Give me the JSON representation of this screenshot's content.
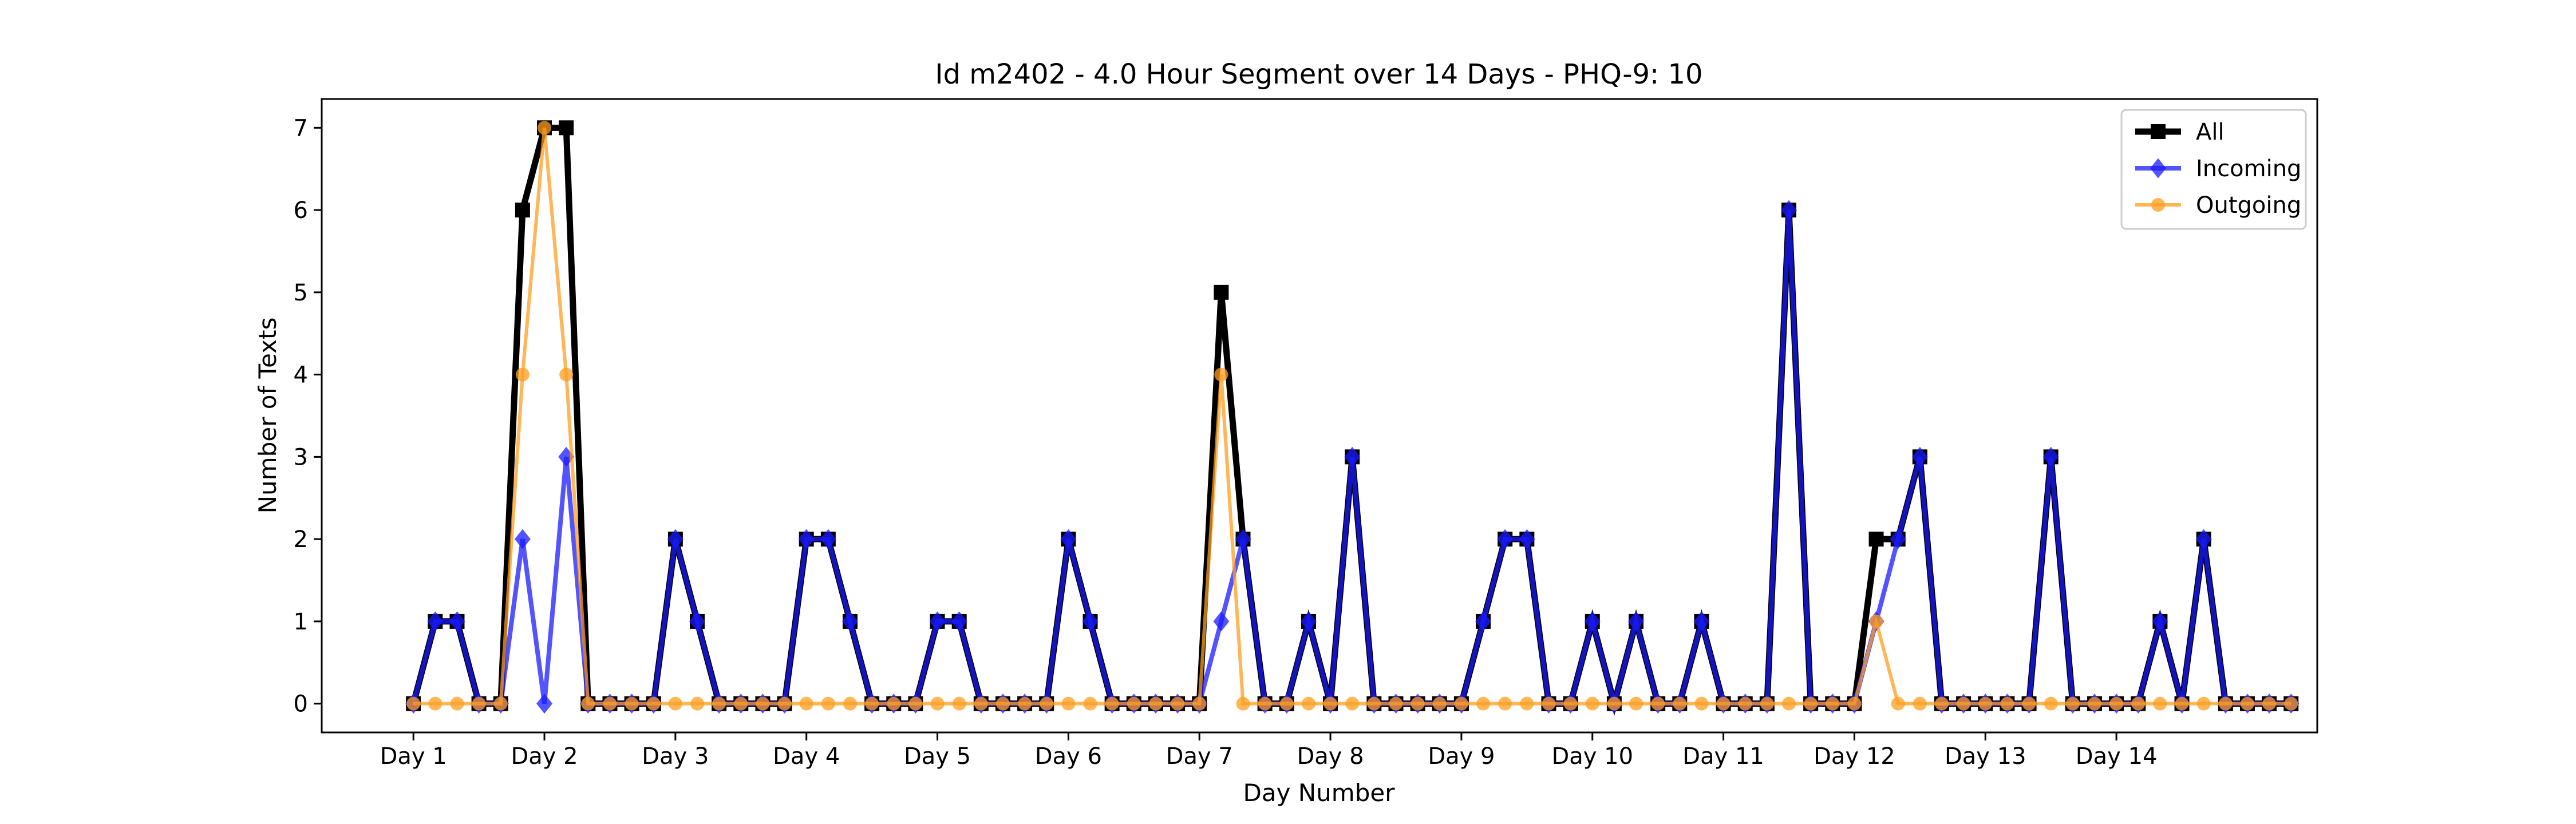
{
  "chart_data": {
    "type": "line",
    "title": "Id m2402 - 4.0 Hour Segment over 14 Days - PHQ-9: 10",
    "xlabel": "Day Number",
    "ylabel": "Number of Texts",
    "x_ticks": [
      {
        "x": 0,
        "label": "Day 1"
      },
      {
        "x": 6,
        "label": "Day 2"
      },
      {
        "x": 12,
        "label": "Day 3"
      },
      {
        "x": 18,
        "label": "Day 4"
      },
      {
        "x": 24,
        "label": "Day 5"
      },
      {
        "x": 30,
        "label": "Day 6"
      },
      {
        "x": 36,
        "label": "Day 7"
      },
      {
        "x": 42,
        "label": "Day 8"
      },
      {
        "x": 48,
        "label": "Day 9"
      },
      {
        "x": 54,
        "label": "Day 10"
      },
      {
        "x": 60,
        "label": "Day 11"
      },
      {
        "x": 66,
        "label": "Day 12"
      },
      {
        "x": 72,
        "label": "Day 13"
      },
      {
        "x": 78,
        "label": "Day 14"
      }
    ],
    "y_ticks": [
      0,
      1,
      2,
      3,
      4,
      5,
      6,
      7
    ],
    "xlim": [
      -4.2,
      87.2
    ],
    "ylim": [
      -0.35,
      7.35
    ],
    "legend_position": "top-right",
    "series": [
      {
        "name": "All",
        "color": "#000000",
        "marker": "square",
        "values": [
          0,
          1,
          1,
          0,
          0,
          6,
          7,
          7,
          0,
          0,
          0,
          0,
          2,
          1,
          0,
          0,
          0,
          0,
          2,
          2,
          1,
          0,
          0,
          0,
          1,
          1,
          0,
          0,
          0,
          0,
          2,
          1,
          0,
          0,
          0,
          0,
          0,
          5,
          2,
          0,
          0,
          1,
          0,
          3,
          0,
          0,
          0,
          0,
          0,
          1,
          2,
          2,
          0,
          0,
          1,
          0,
          1,
          0,
          0,
          1,
          0,
          0,
          0,
          6,
          0,
          0,
          0,
          2,
          2,
          3,
          0,
          0,
          0,
          0,
          0,
          3,
          0,
          0,
          0,
          0,
          1,
          0,
          2,
          0,
          0,
          0,
          0
        ]
      },
      {
        "name": "Incoming",
        "color": "#1a1aff",
        "marker": "diamond",
        "values": [
          0,
          1,
          1,
          0,
          0,
          2,
          0,
          3,
          0,
          0,
          0,
          0,
          2,
          1,
          0,
          0,
          0,
          0,
          2,
          2,
          1,
          0,
          0,
          0,
          1,
          1,
          0,
          0,
          0,
          0,
          2,
          1,
          0,
          0,
          0,
          0,
          0,
          1,
          2,
          0,
          0,
          1,
          0,
          3,
          0,
          0,
          0,
          0,
          0,
          1,
          2,
          2,
          0,
          0,
          1,
          0,
          1,
          0,
          0,
          1,
          0,
          0,
          0,
          6,
          0,
          0,
          0,
          1,
          2,
          3,
          0,
          0,
          0,
          0,
          0,
          3,
          0,
          0,
          0,
          0,
          1,
          0,
          2,
          0,
          0,
          0,
          0
        ]
      },
      {
        "name": "Outgoing",
        "color": "#ff9d1f",
        "marker": "circle",
        "values": [
          0,
          0,
          0,
          0,
          0,
          4,
          7,
          4,
          0,
          0,
          0,
          0,
          0,
          0,
          0,
          0,
          0,
          0,
          0,
          0,
          0,
          0,
          0,
          0,
          0,
          0,
          0,
          0,
          0,
          0,
          0,
          0,
          0,
          0,
          0,
          0,
          0,
          4,
          0,
          0,
          0,
          0,
          0,
          0,
          0,
          0,
          0,
          0,
          0,
          0,
          0,
          0,
          0,
          0,
          0,
          0,
          0,
          0,
          0,
          0,
          0,
          0,
          0,
          0,
          0,
          0,
          0,
          1,
          0,
          0,
          0,
          0,
          0,
          0,
          0,
          0,
          0,
          0,
          0,
          0,
          0,
          0,
          0,
          0,
          0,
          0,
          0
        ]
      }
    ]
  }
}
